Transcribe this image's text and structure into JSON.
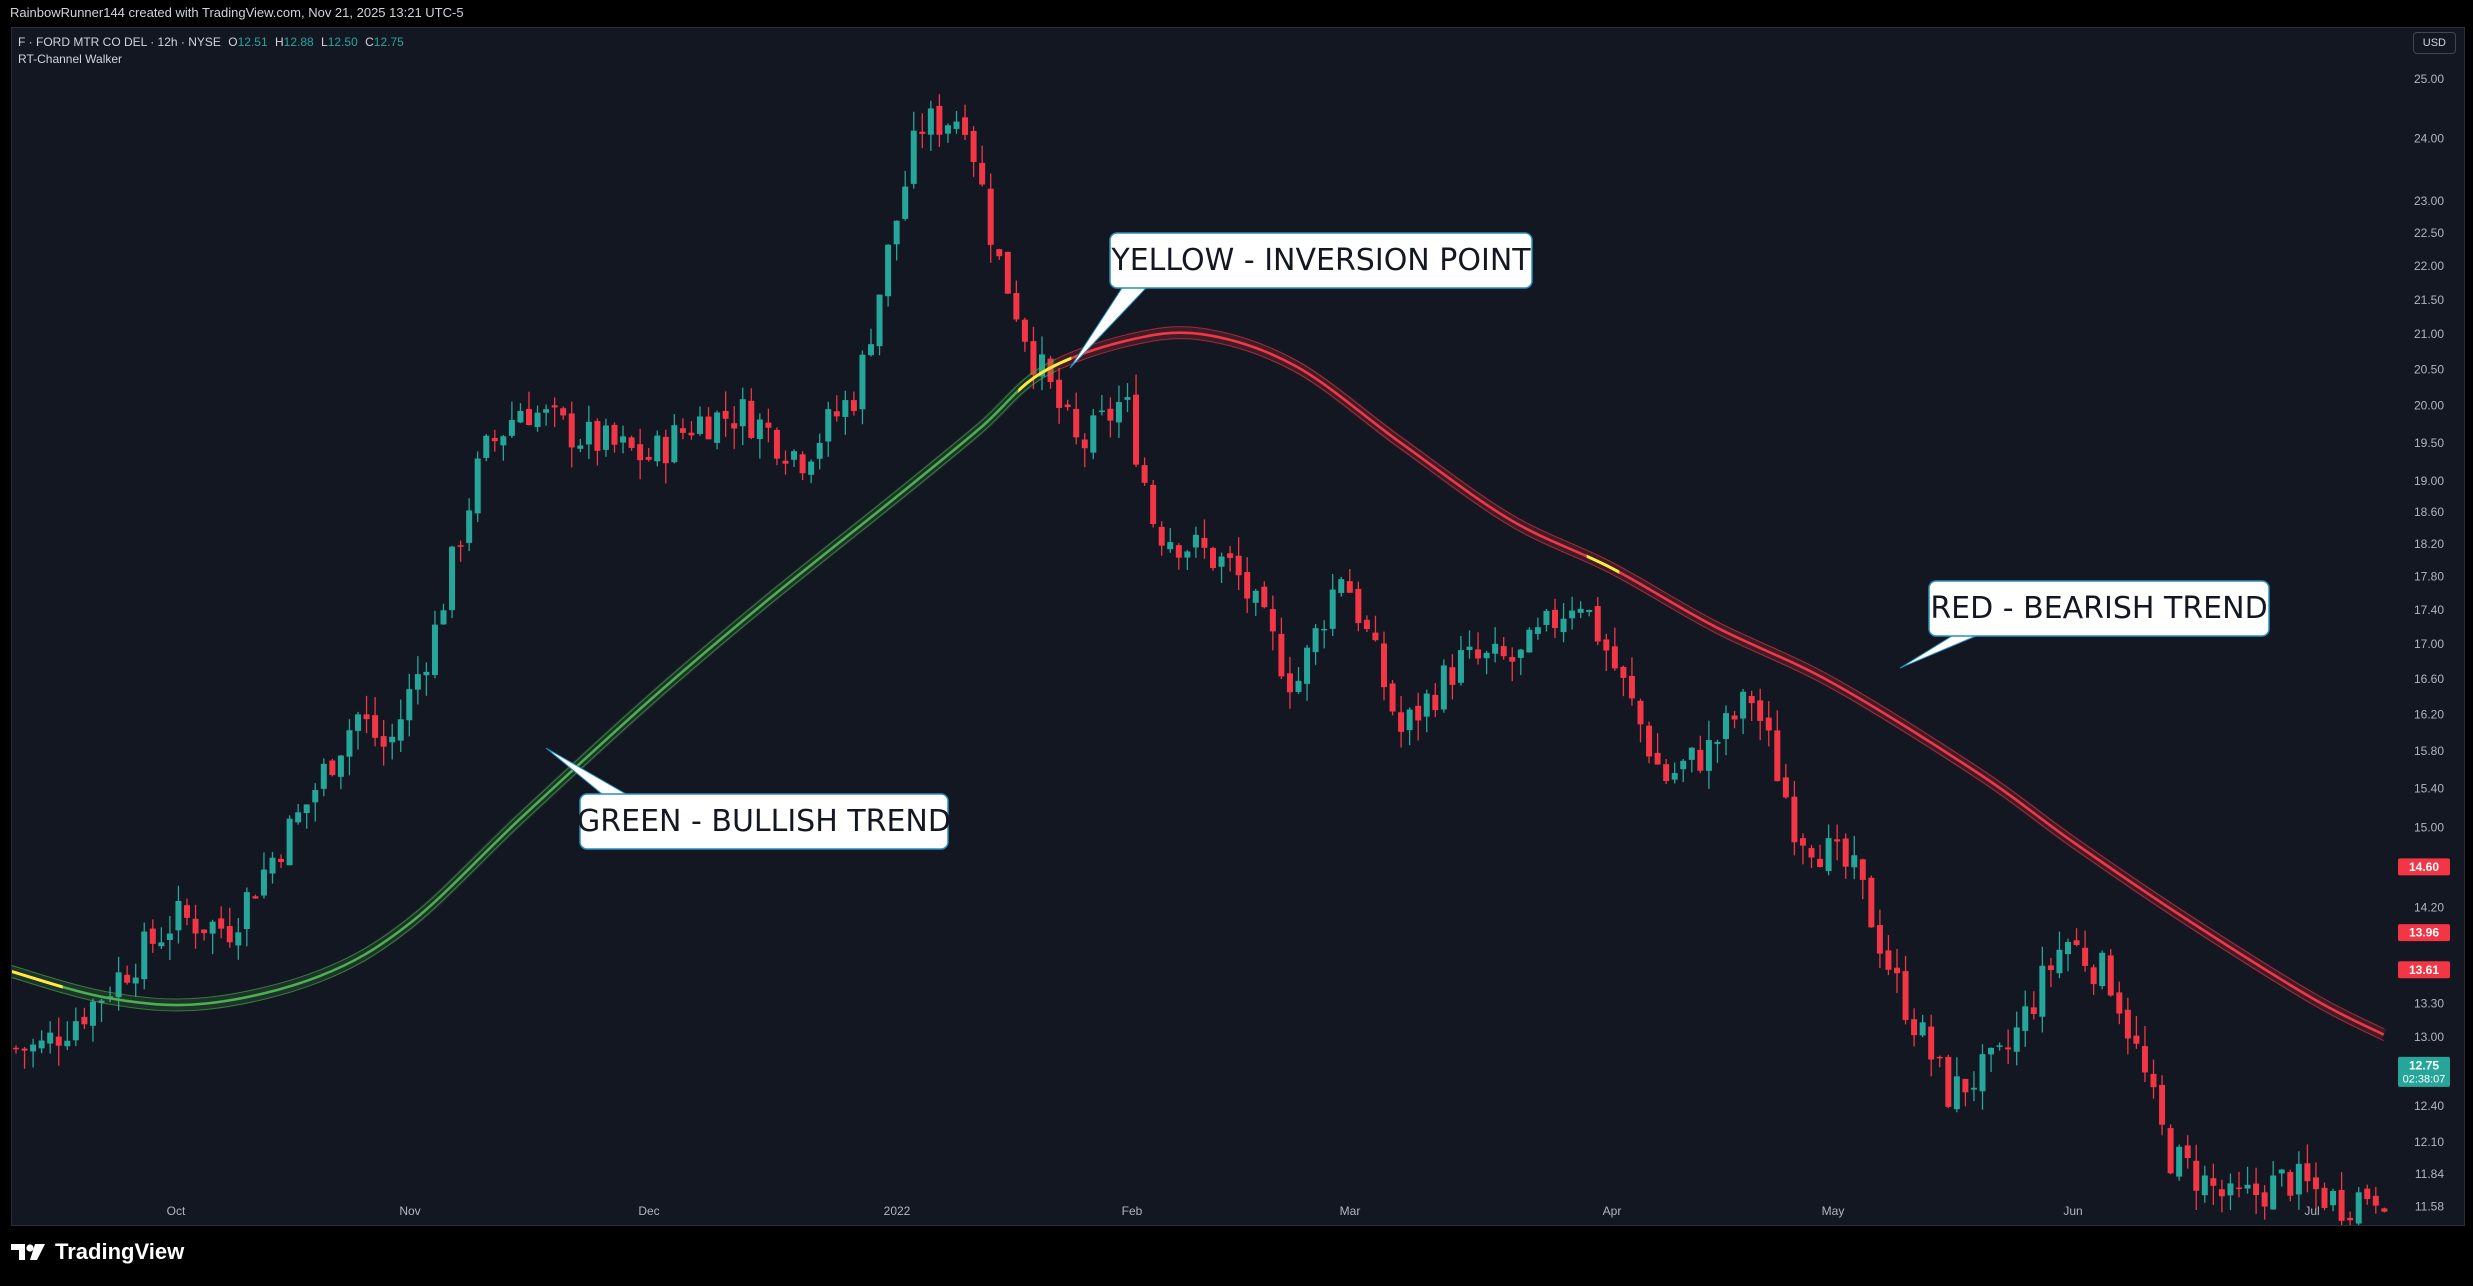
{
  "credit": "RainbowRunner144 created with TradingView.com, Nov 21, 2025 13:21 UTC-5",
  "legend": {
    "symbol_line": "F · FORD MTR CO DEL · 12h · NYSE",
    "open_label": "O",
    "open": "12.51",
    "high_label": "H",
    "high": "12.88",
    "low_label": "L",
    "low": "12.50",
    "close_label": "C",
    "close": "12.75",
    "indicator": "RT-Channel Walker"
  },
  "currency": "USD",
  "brand": "TradingView",
  "colors": {
    "up": "#26a69a",
    "down": "#f23645",
    "bullish": "#4caf50",
    "bearish": "#f23645",
    "inversion": "#ffeb3b",
    "background": "#131722"
  },
  "chart_data": {
    "type": "candlestick",
    "symbol": "F",
    "y_scale": "log",
    "ylim": [
      11.45,
      25.6
    ],
    "x_labels": [
      "Oct",
      "Nov",
      "Dec",
      "2022",
      "Feb",
      "Mar",
      "Apr",
      "May",
      "Jun",
      "Jul"
    ],
    "y_ticks": [
      "25.00",
      "24.00",
      "23.00",
      "22.50",
      "22.00",
      "21.50",
      "21.00",
      "20.50",
      "20.00",
      "19.50",
      "19.00",
      "18.60",
      "18.20",
      "17.80",
      "17.40",
      "17.00",
      "16.60",
      "16.20",
      "15.80",
      "15.40",
      "15.00",
      "14.20",
      "13.30",
      "13.00",
      "12.40",
      "12.10",
      "11.84",
      "11.58"
    ],
    "price_badges": [
      {
        "value": "14.60",
        "color": "#f23645"
      },
      {
        "value": "13.96",
        "color": "#f23645"
      },
      {
        "value": "13.61",
        "color": "#f23645"
      },
      {
        "value": "12.75",
        "sub": "02:38:07",
        "color": "#26a69a"
      }
    ],
    "candles_close_path": [
      [
        "2021-09-13",
        12.9
      ],
      [
        "2021-09-20",
        13.3
      ],
      [
        "2021-10-01",
        14.1
      ],
      [
        "2021-10-08",
        14.0
      ],
      [
        "2021-10-18",
        15.2
      ],
      [
        "2021-10-25",
        16.2
      ],
      [
        "2021-10-29",
        15.8
      ],
      [
        "2021-11-04",
        17.1
      ],
      [
        "2021-11-10",
        19.3
      ],
      [
        "2021-11-15",
        20.0
      ],
      [
        "2021-11-22",
        19.6
      ],
      [
        "2021-12-01",
        19.3
      ],
      [
        "2021-12-07",
        19.8
      ],
      [
        "2021-12-13",
        19.9
      ],
      [
        "2021-12-20",
        19.3
      ],
      [
        "2021-12-27",
        20.2
      ],
      [
        "2022-01-04",
        24.2
      ],
      [
        "2022-01-10",
        24.4
      ],
      [
        "2022-01-14",
        22.2
      ],
      [
        "2022-01-19",
        20.7
      ],
      [
        "2022-01-25",
        19.4
      ],
      [
        "2022-01-31",
        20.1
      ],
      [
        "2022-02-04",
        18.4
      ],
      [
        "2022-02-14",
        17.9
      ],
      [
        "2022-02-22",
        16.5
      ],
      [
        "2022-02-28",
        17.9
      ],
      [
        "2022-03-07",
        16.0
      ],
      [
        "2022-03-14",
        16.8
      ],
      [
        "2022-03-21",
        16.8
      ],
      [
        "2022-03-28",
        17.6
      ],
      [
        "2022-04-01",
        16.8
      ],
      [
        "2022-04-08",
        15.5
      ],
      [
        "2022-04-14",
        15.8
      ],
      [
        "2022-04-20",
        16.4
      ],
      [
        "2022-04-26",
        15.0
      ],
      [
        "2022-05-04",
        14.5
      ],
      [
        "2022-05-09",
        13.5
      ],
      [
        "2022-05-16",
        12.5
      ],
      [
        "2022-05-23",
        12.8
      ],
      [
        "2022-05-31",
        13.9
      ],
      [
        "2022-06-06",
        13.5
      ],
      [
        "2022-06-13",
        12.0
      ],
      [
        "2022-06-21",
        11.6
      ],
      [
        "2022-06-28",
        11.8
      ],
      [
        "2022-07-05",
        11.6
      ],
      [
        "2022-07-08",
        11.7
      ]
    ],
    "series": [
      {
        "name": "GREEN - BULLISH TREND",
        "type": "channel"
      },
      {
        "name": "RED - BEARISH TREND",
        "type": "channel"
      }
    ],
    "annotations": [
      {
        "text": "YELLOW - INVERSION POINT"
      },
      {
        "text": "RED - BEARISH TREND"
      },
      {
        "text": "GREEN - BULLISH TREND"
      }
    ]
  }
}
